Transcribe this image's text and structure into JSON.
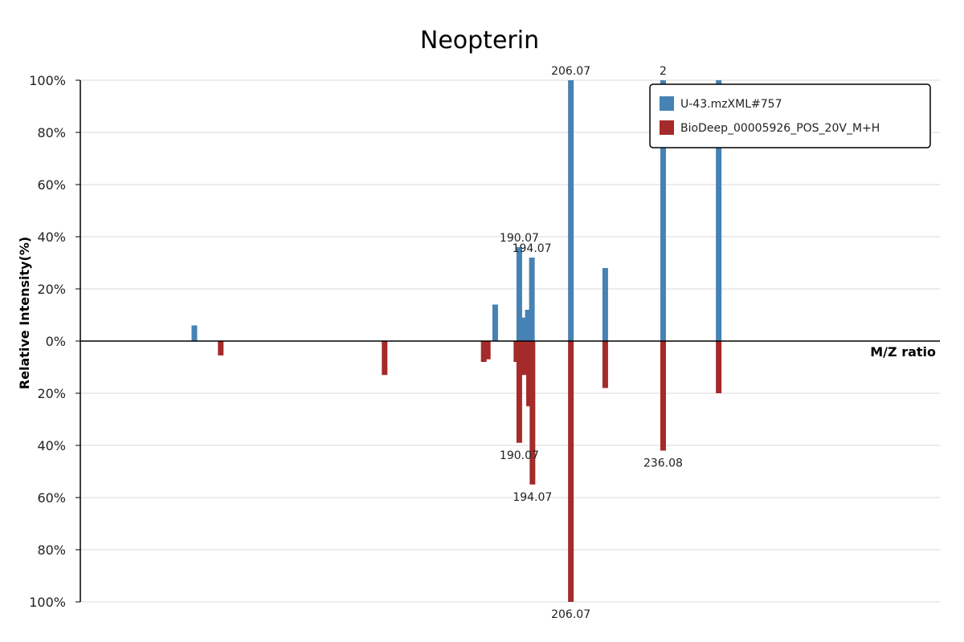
{
  "chart_data": {
    "type": "bar",
    "title": "Neopterin",
    "xlabel": "M/Z ratio",
    "ylabel": "Relative Intensity(%)",
    "ylim": [
      -100,
      100
    ],
    "xlim": [
      100,
      250
    ],
    "y_ticks": [
      "100%",
      "80%",
      "60%",
      "40%",
      "20%",
      "0%",
      "20%",
      "40%",
      "60%",
      "80%",
      "100%"
    ],
    "grid": true,
    "legend_position": "top-right",
    "series": [
      {
        "name": "U-43.mzXML#757",
        "color": "#4682b4",
        "direction": "up",
        "peaks": [
          {
            "mz": 119.9,
            "intensity": 6
          },
          {
            "mz": 172.4,
            "intensity": 14
          },
          {
            "mz": 176.6,
            "intensity": 36,
            "label": "190.07"
          },
          {
            "mz": 177.3,
            "intensity": 9
          },
          {
            "mz": 178.1,
            "intensity": 12
          },
          {
            "mz": 178.8,
            "intensity": 32,
            "label": "194.07"
          },
          {
            "mz": 185.6,
            "intensity": 100,
            "label": "206.07"
          },
          {
            "mz": 191.6,
            "intensity": 28
          },
          {
            "mz": 201.7,
            "intensity": 100,
            "label": "2"
          },
          {
            "mz": 211.4,
            "intensity": 100
          }
        ]
      },
      {
        "name": "BioDeep_00005926_POS_20V_M+H",
        "color": "#a52a2a",
        "direction": "down",
        "peaks": [
          {
            "mz": 124.5,
            "intensity": 5.5
          },
          {
            "mz": 153.1,
            "intensity": 13
          },
          {
            "mz": 170.4,
            "intensity": 8
          },
          {
            "mz": 171.1,
            "intensity": 7
          },
          {
            "mz": 176.1,
            "intensity": 8
          },
          {
            "mz": 176.6,
            "intensity": 39,
            "label": "190.07"
          },
          {
            "mz": 177.5,
            "intensity": 13
          },
          {
            "mz": 178.3,
            "intensity": 25
          },
          {
            "mz": 178.9,
            "intensity": 55,
            "label": "194.07"
          },
          {
            "mz": 185.6,
            "intensity": 100,
            "label": "206.07"
          },
          {
            "mz": 191.6,
            "intensity": 18
          },
          {
            "mz": 201.7,
            "intensity": 42,
            "label": "236.08"
          },
          {
            "mz": 211.4,
            "intensity": 20
          }
        ]
      }
    ]
  }
}
